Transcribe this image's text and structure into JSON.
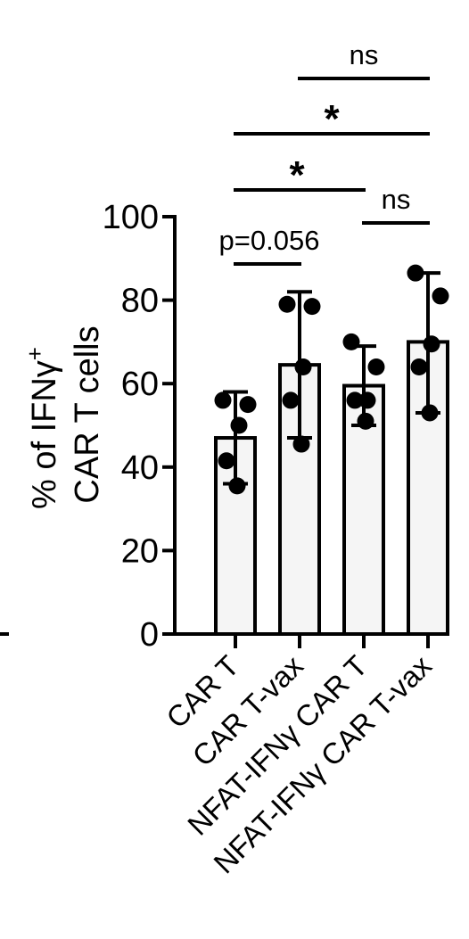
{
  "chart_data": {
    "type": "bar",
    "ylabel": {
      "line1": "% of IFNγ",
      "sup": "+",
      "line2": "CAR T cells"
    },
    "ylim": [
      0,
      100
    ],
    "yticks": [
      0,
      20,
      40,
      60,
      80,
      100
    ],
    "yticklabels": [
      "0",
      "20",
      "40",
      "60",
      "80",
      "100"
    ],
    "categories": [
      "CAR T",
      "CAR T-vax",
      "NFAT-IFNγ CAR T",
      "NFAT-IFNγ CAR T-vax"
    ],
    "means": [
      47,
      64.5,
      59.5,
      70
    ],
    "sd_low": [
      36,
      47,
      50,
      53
    ],
    "sd_high": [
      58,
      82,
      69,
      86.5
    ],
    "points": [
      [
        56,
        55,
        50,
        41.5,
        35.5
      ],
      [
        79,
        78.5,
        64,
        56,
        45.5
      ],
      [
        70,
        64,
        56,
        56,
        51
      ],
      [
        86.5,
        81,
        69.5,
        64,
        53
      ]
    ],
    "bar_fill": "#f5f5f5",
    "point_color": "#000000",
    "comparisons": [
      {
        "from": 0,
        "to": 1,
        "label": "p=0.056"
      },
      {
        "from": 2,
        "to": 3,
        "label": "ns"
      },
      {
        "from": 0,
        "to": 2,
        "label": "*"
      },
      {
        "from": 0,
        "to": 3,
        "label": "*"
      },
      {
        "from": 1,
        "to": 3,
        "label": "ns"
      }
    ]
  }
}
